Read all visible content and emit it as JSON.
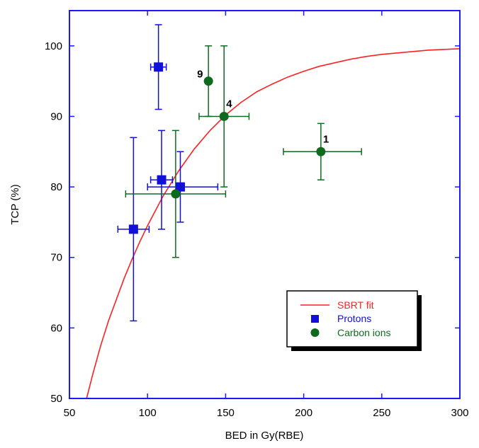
{
  "chart_data": {
    "type": "scatter",
    "title": "",
    "xlabel": "BED in Gy(RBE)",
    "ylabel": "TCP (%)",
    "xlim": [
      50,
      300
    ],
    "ylim": [
      50,
      105
    ],
    "xticks": [
      50,
      100,
      150,
      200,
      250,
      300
    ],
    "yticks": [
      50,
      60,
      70,
      80,
      90,
      100
    ],
    "grid": false,
    "legend_position": "bottom-right",
    "colors": {
      "axis": "#1a1aff",
      "fit": "#ff2020",
      "protons": "#1010d8",
      "carbon": "#0e6b1e",
      "text": "#000000"
    },
    "series": [
      {
        "name": "SBRT fit",
        "kind": "line",
        "points": [
          [
            61,
            50
          ],
          [
            65,
            53.5
          ],
          [
            70,
            57.5
          ],
          [
            75,
            61
          ],
          [
            80,
            64
          ],
          [
            85,
            67
          ],
          [
            90,
            69.7
          ],
          [
            95,
            72.2
          ],
          [
            100,
            74.5
          ],
          [
            110,
            78.7
          ],
          [
            120,
            82.3
          ],
          [
            130,
            85.4
          ],
          [
            140,
            88
          ],
          [
            150,
            90.2
          ],
          [
            160,
            92
          ],
          [
            170,
            93.5
          ],
          [
            180,
            94.6
          ],
          [
            190,
            95.6
          ],
          [
            200,
            96.4
          ],
          [
            210,
            97.1
          ],
          [
            220,
            97.6
          ],
          [
            230,
            98.1
          ],
          [
            240,
            98.5
          ],
          [
            250,
            98.8
          ],
          [
            260,
            99
          ],
          [
            270,
            99.2
          ],
          [
            280,
            99.4
          ],
          [
            290,
            99.5
          ],
          [
            300,
            99.6
          ]
        ]
      },
      {
        "name": "Protons",
        "kind": "points",
        "marker": "square",
        "points": [
          {
            "x": 107,
            "y": 97,
            "xerr": [
              102,
              112
            ],
            "yerr": [
              91,
              103
            ]
          },
          {
            "x": 109,
            "y": 81,
            "xerr": [
              102,
              116
            ],
            "yerr": [
              74,
              88
            ]
          },
          {
            "x": 121,
            "y": 80,
            "xerr": [
              100,
              145
            ],
            "yerr": [
              75,
              85
            ]
          },
          {
            "x": 91,
            "y": 74,
            "xerr": [
              81,
              101
            ],
            "yerr": [
              61,
              87
            ]
          }
        ]
      },
      {
        "name": "Carbon ions",
        "kind": "points",
        "marker": "circle",
        "points": [
          {
            "x": 139,
            "y": 95,
            "xerr": null,
            "yerr": [
              90,
              100
            ],
            "label": "9"
          },
          {
            "x": 149,
            "y": 90,
            "xerr": [
              133,
              165
            ],
            "yerr": [
              80,
              100
            ],
            "label": "4"
          },
          {
            "x": 211,
            "y": 85,
            "xerr": [
              187,
              237
            ],
            "yerr": [
              81,
              89
            ],
            "label": "1"
          },
          {
            "x": 118,
            "y": 79,
            "xerr": [
              86,
              150
            ],
            "yerr": [
              70,
              88
            ]
          }
        ]
      }
    ]
  }
}
